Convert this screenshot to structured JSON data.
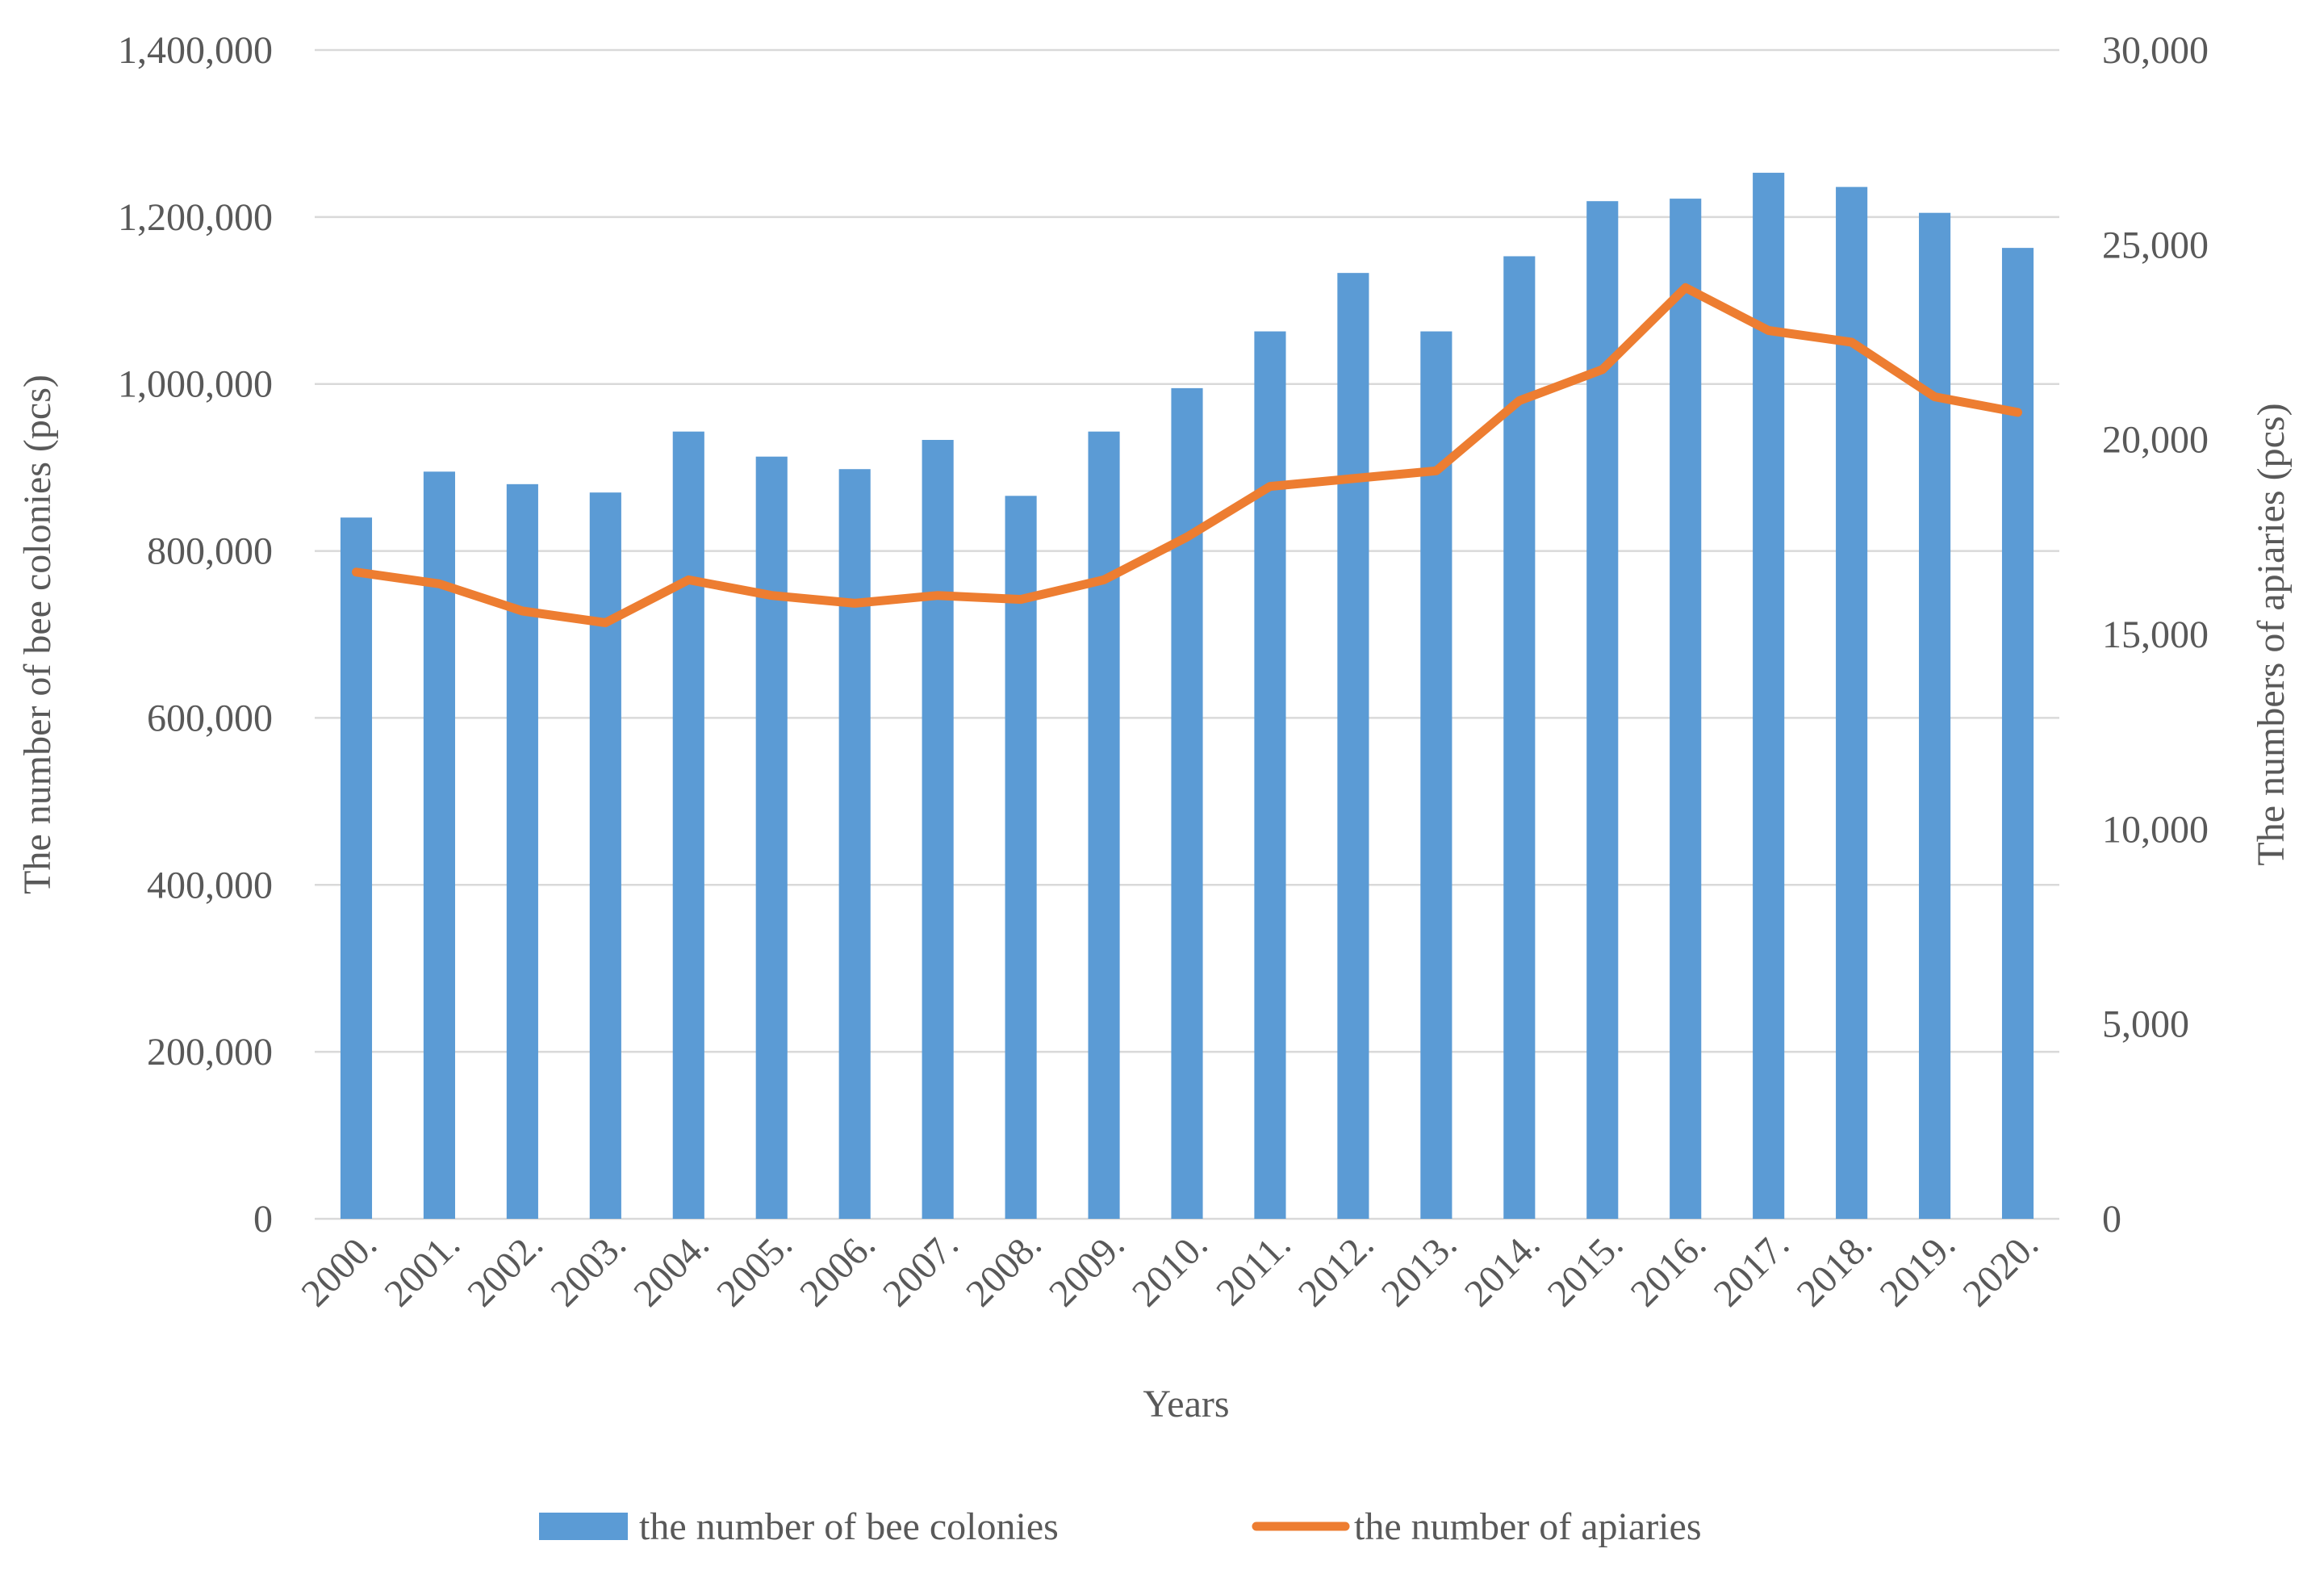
{
  "chart_data": {
    "type": "bar+line",
    "title": "",
    "xlabel": "Years",
    "ylabel_left": "The number of bee colonies (pcs)",
    "ylabel_right": "The numbers of apiaries (pcs)",
    "categories": [
      "2000.",
      "2001.",
      "2002.",
      "2003.",
      "2004.",
      "2005.",
      "2006.",
      "2007.",
      "2008.",
      "2009.",
      "2010.",
      "2011.",
      "2012.",
      "2013.",
      "2014.",
      "2015.",
      "2016.",
      "2017.",
      "2018.",
      "2019.",
      "2020."
    ],
    "series": [
      {
        "name": "the number of bee colonies",
        "type": "bar",
        "axis": "left",
        "color": "#5B9BD5",
        "values": [
          840000,
          895000,
          880000,
          870000,
          943000,
          913000,
          898000,
          933000,
          866000,
          943000,
          995000,
          1063000,
          1133000,
          1063000,
          1153000,
          1219000,
          1222000,
          1253000,
          1236000,
          1205000,
          1163000
        ]
      },
      {
        "name": "the number of apiaries",
        "type": "line",
        "axis": "right",
        "color": "#ED7D31",
        "values": [
          16600,
          16300,
          15600,
          15300,
          16400,
          16000,
          15800,
          16000,
          15900,
          16400,
          17500,
          18800,
          19000,
          19200,
          21000,
          21800,
          23900,
          22800,
          22500,
          21100,
          20700
        ]
      }
    ],
    "ylim_left": [
      0,
      1400000
    ],
    "yticks_left": [
      "0",
      "200,000",
      "400,000",
      "600,000",
      "800,000",
      "1,000,000",
      "1,200,000",
      "1,400,000"
    ],
    "ylim_right": [
      0,
      30000
    ],
    "yticks_right": [
      "0",
      "5,000",
      "10,000",
      "15,000",
      "20,000",
      "25,000",
      "30,000"
    ],
    "grid": true,
    "legend_position": "bottom",
    "colors": {
      "bars": "#5B9BD5",
      "line": "#ED7D31",
      "grid": "#D9D9D9",
      "text": "#595959"
    }
  }
}
